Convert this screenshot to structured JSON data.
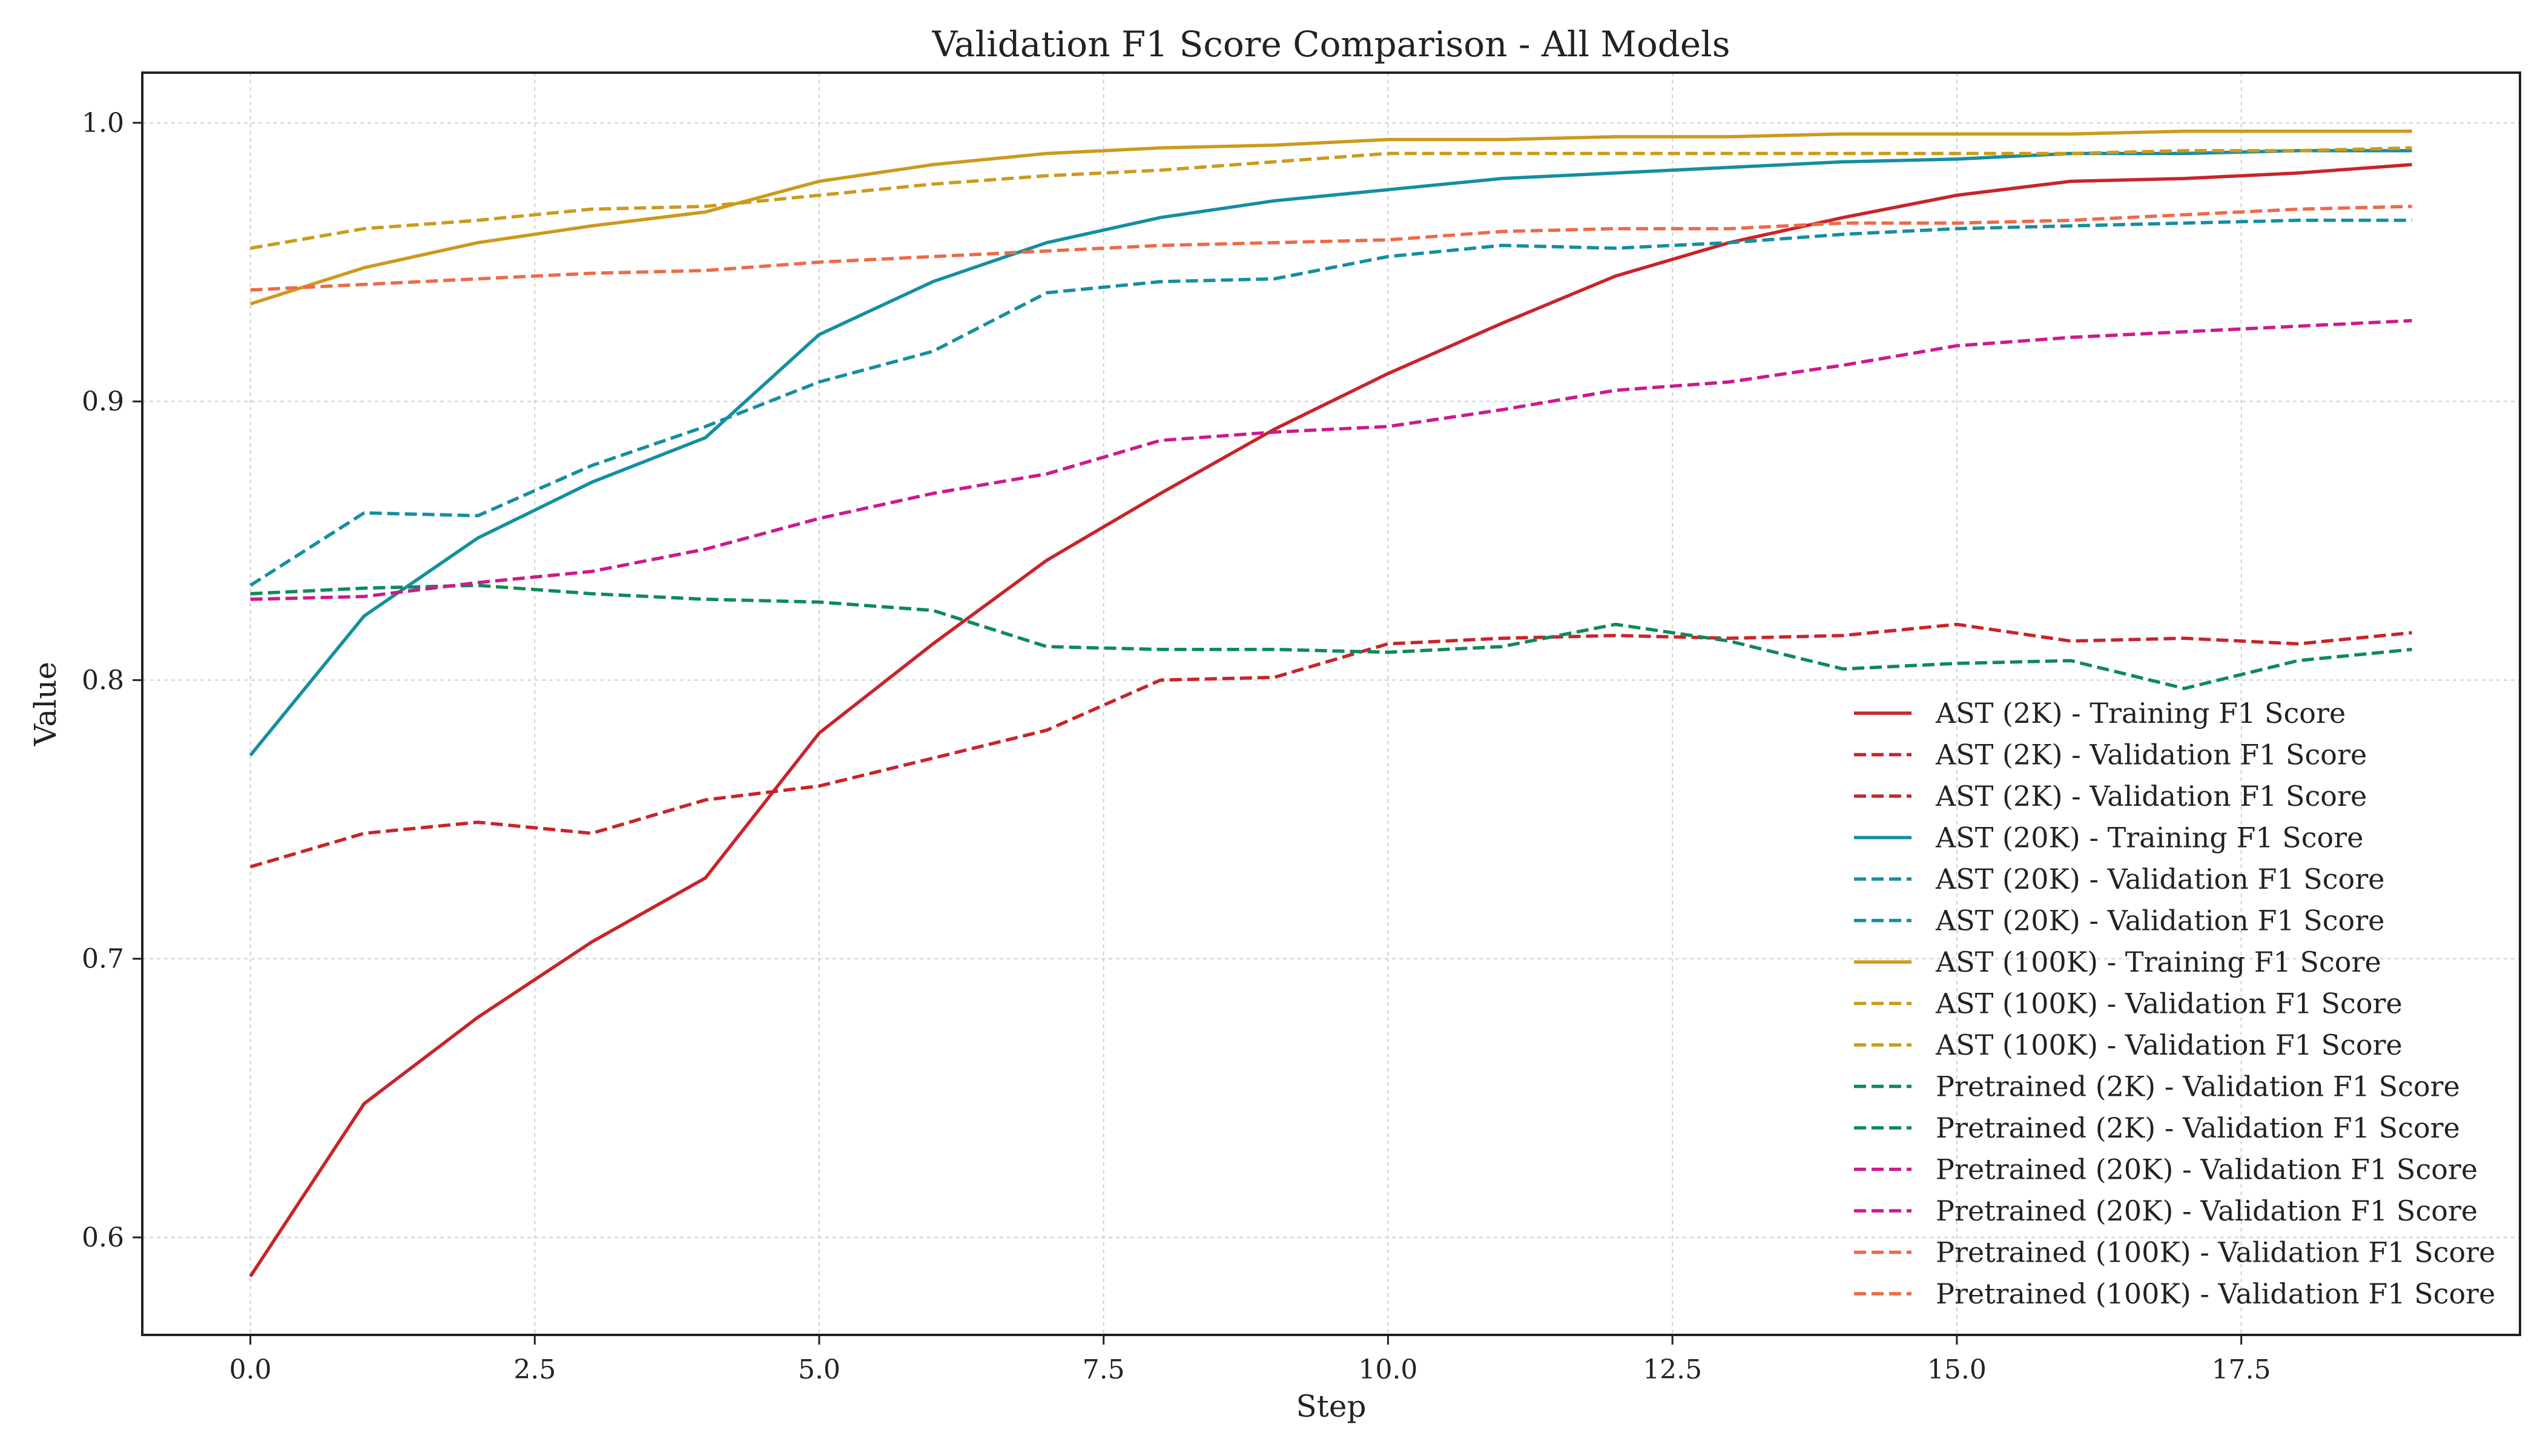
{
  "chart_data": {
    "type": "line",
    "title": "Validation F1 Score Comparison - All Models",
    "xlabel": "Step",
    "ylabel": "Value",
    "xlim": [
      -0.95,
      19.95
    ],
    "ylim": [
      0.565,
      1.018
    ],
    "xticks": [
      0,
      2.5,
      5,
      7.5,
      10,
      12.5,
      15,
      17.5
    ],
    "xtick_labels": [
      "0.0",
      "2.5",
      "5.0",
      "7.5",
      "10.0",
      "12.5",
      "15.0",
      "17.5"
    ],
    "yticks": [
      0.6,
      0.7,
      0.8,
      0.9,
      1.0
    ],
    "ytick_labels": [
      "0.6",
      "0.7",
      "0.8",
      "0.9",
      "1.0"
    ],
    "grid": true,
    "legend_position": "lower-right",
    "x": [
      0,
      1,
      2,
      3,
      4,
      5,
      6,
      7,
      8,
      9,
      10,
      11,
      12,
      13,
      14,
      15,
      16,
      17,
      18,
      19
    ],
    "series": [
      {
        "name": "AST (2K) - Training F1 Score",
        "color": "#c8242a",
        "style": "solid",
        "values": [
          0.586,
          0.648,
          0.679,
          0.706,
          0.729,
          0.781,
          0.813,
          0.843,
          0.867,
          0.89,
          0.91,
          0.928,
          0.945,
          0.957,
          0.966,
          0.974,
          0.979,
          0.98,
          0.982,
          0.985
        ]
      },
      {
        "name": "AST (2K) - Validation F1 Score",
        "color": "#c8242a",
        "style": "dashed",
        "values": [
          0.733,
          0.745,
          0.749,
          0.745,
          0.757,
          0.762,
          0.772,
          0.782,
          0.8,
          0.801,
          0.813,
          0.815,
          0.816,
          0.815,
          0.816,
          0.82,
          0.814,
          0.815,
          0.813,
          0.817
        ]
      },
      {
        "name": "AST (20K) - Training F1 Score",
        "color": "#138fa0",
        "style": "solid",
        "values": [
          0.773,
          0.823,
          0.851,
          0.871,
          0.887,
          0.924,
          0.943,
          0.957,
          0.966,
          0.972,
          0.976,
          0.98,
          0.982,
          0.984,
          0.986,
          0.987,
          0.989,
          0.989,
          0.99,
          0.99
        ]
      },
      {
        "name": "AST (20K) - Validation F1 Score",
        "color": "#138fa0",
        "style": "dashed",
        "values": [
          0.834,
          0.86,
          0.859,
          0.877,
          0.891,
          0.907,
          0.918,
          0.939,
          0.943,
          0.944,
          0.952,
          0.956,
          0.955,
          0.957,
          0.96,
          0.962,
          0.963,
          0.964,
          0.965,
          0.965
        ]
      },
      {
        "name": "AST (100K) - Training F1 Score",
        "color": "#cc9a1c",
        "style": "solid",
        "values": [
          0.935,
          0.948,
          0.957,
          0.963,
          0.968,
          0.979,
          0.985,
          0.989,
          0.991,
          0.992,
          0.994,
          0.994,
          0.995,
          0.995,
          0.996,
          0.996,
          0.996,
          0.997,
          0.997,
          0.997
        ]
      },
      {
        "name": "AST (100K) - Validation F1 Score",
        "color": "#cc9a1c",
        "style": "dashed",
        "values": [
          0.955,
          0.962,
          0.965,
          0.969,
          0.97,
          0.974,
          0.978,
          0.981,
          0.983,
          0.986,
          0.989,
          0.989,
          0.989,
          0.989,
          0.989,
          0.989,
          0.989,
          0.99,
          0.99,
          0.991
        ]
      },
      {
        "name": "Pretrained (2K) - Validation F1 Score",
        "color": "#0e8a5a",
        "style": "dashed",
        "values": [
          0.831,
          0.833,
          0.834,
          0.831,
          0.829,
          0.828,
          0.825,
          0.812,
          0.811,
          0.811,
          0.81,
          0.812,
          0.82,
          0.814,
          0.804,
          0.806,
          0.807,
          0.797,
          0.807,
          0.811
        ]
      },
      {
        "name": "Pretrained (20K) - Validation F1 Score",
        "color": "#cc1a8c",
        "style": "dashed",
        "values": [
          0.829,
          0.83,
          0.835,
          0.839,
          0.847,
          0.858,
          0.867,
          0.874,
          0.886,
          0.889,
          0.891,
          0.897,
          0.904,
          0.907,
          0.913,
          0.92,
          0.923,
          0.925,
          0.927,
          0.929
        ]
      },
      {
        "name": "Pretrained (100K) - Validation F1 Score",
        "color": "#ee6a48",
        "style": "dashed",
        "values": [
          0.94,
          0.942,
          0.944,
          0.946,
          0.947,
          0.95,
          0.952,
          0.954,
          0.956,
          0.957,
          0.958,
          0.961,
          0.962,
          0.962,
          0.964,
          0.964,
          0.965,
          0.967,
          0.969,
          0.97
        ]
      }
    ],
    "legend_entries": [
      {
        "label": "AST (2K) - Training F1 Score",
        "color": "#c8242a",
        "style": "solid"
      },
      {
        "label": "AST (2K) - Validation F1 Score",
        "color": "#c8242a",
        "style": "dashed"
      },
      {
        "label": "AST (2K) - Validation F1 Score",
        "color": "#c8242a",
        "style": "dashed"
      },
      {
        "label": "AST (20K) - Training F1 Score",
        "color": "#138fa0",
        "style": "solid"
      },
      {
        "label": "AST (20K) - Validation F1 Score",
        "color": "#138fa0",
        "style": "dashed"
      },
      {
        "label": "AST (20K) - Validation F1 Score",
        "color": "#138fa0",
        "style": "dashed"
      },
      {
        "label": "AST (100K) - Training F1 Score",
        "color": "#cc9a1c",
        "style": "solid"
      },
      {
        "label": "AST (100K) - Validation F1 Score",
        "color": "#cc9a1c",
        "style": "dashed"
      },
      {
        "label": "AST (100K) - Validation F1 Score",
        "color": "#cc9a1c",
        "style": "dashed"
      },
      {
        "label": "Pretrained (2K) - Validation F1 Score",
        "color": "#0e8a5a",
        "style": "dashed"
      },
      {
        "label": "Pretrained (2K) - Validation F1 Score",
        "color": "#0e8a5a",
        "style": "dashed"
      },
      {
        "label": "Pretrained (20K) - Validation F1 Score",
        "color": "#cc1a8c",
        "style": "dashed"
      },
      {
        "label": "Pretrained (20K) - Validation F1 Score",
        "color": "#cc1a8c",
        "style": "dashed"
      },
      {
        "label": "Pretrained (100K) - Validation F1 Score",
        "color": "#ee6a48",
        "style": "dashed"
      },
      {
        "label": "Pretrained (100K) - Validation F1 Score",
        "color": "#ee6a48",
        "style": "dashed"
      }
    ]
  }
}
